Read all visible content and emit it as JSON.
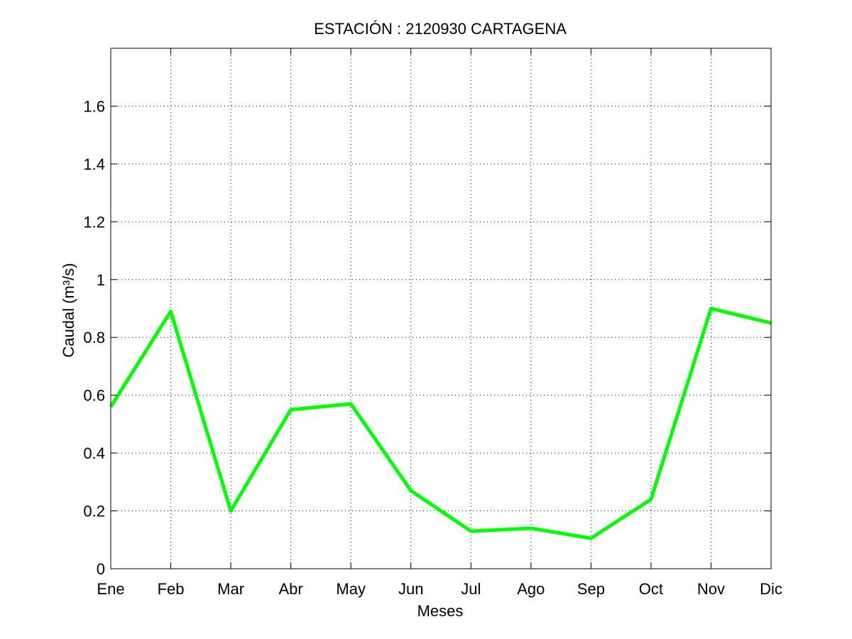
{
  "chart_data": {
    "type": "line",
    "title": "ESTACIÓN :  2120930  CARTAGENA",
    "xlabel": "Meses",
    "ylabel": "Caudal (m³/s)",
    "categories": [
      "Ene",
      "Feb",
      "Mar",
      "Abr",
      "May",
      "Jun",
      "Jul",
      "Ago",
      "Sep",
      "Oct",
      "Nov",
      "Dic"
    ],
    "series": [
      {
        "values": [
          0.56,
          0.89,
          0.2,
          0.55,
          0.57,
          0.27,
          0.13,
          0.14,
          0.105,
          0.24,
          0.9,
          0.85
        ],
        "color": "#00ff00"
      }
    ],
    "ylim": [
      0,
      1.8
    ],
    "yticks": [
      0,
      0.2,
      0.4,
      0.6,
      0.8,
      1,
      1.2,
      1.4,
      1.6
    ],
    "ytick_labels": [
      "0",
      "0.2",
      "0.4",
      "0.6",
      "0.8",
      "1",
      "1.2",
      "1.4",
      "1.6"
    ],
    "grid": true,
    "grid_style": "dotted",
    "axis_color": "#000000",
    "background": "#ffffff"
  }
}
